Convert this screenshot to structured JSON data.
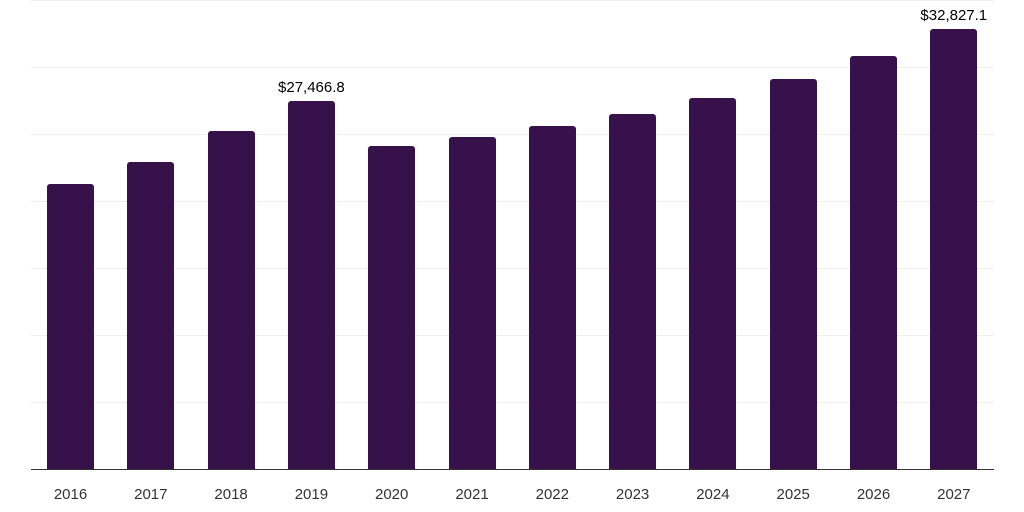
{
  "chart_data": {
    "type": "bar",
    "title": "",
    "xlabel": "",
    "ylabel": "",
    "categories": [
      "2016",
      "2017",
      "2018",
      "2019",
      "2020",
      "2021",
      "2022",
      "2023",
      "2024",
      "2025",
      "2026",
      "2027"
    ],
    "values": [
      21300,
      22900,
      25200,
      27466.8,
      24100,
      24800,
      25600,
      26500,
      27700,
      29100,
      30800,
      32827.1
    ],
    "data_labels": [
      {
        "category": "2019",
        "text": "$27,466.8"
      },
      {
        "category": "2027",
        "text": "$32,827.1"
      }
    ],
    "ylim": [
      0,
      35000
    ],
    "gridlines": [
      0,
      5000,
      10000,
      15000,
      20000,
      25000,
      30000,
      35000
    ],
    "grid": true,
    "y_axis_visible": false,
    "legend": null,
    "bar_color": "#371149"
  }
}
